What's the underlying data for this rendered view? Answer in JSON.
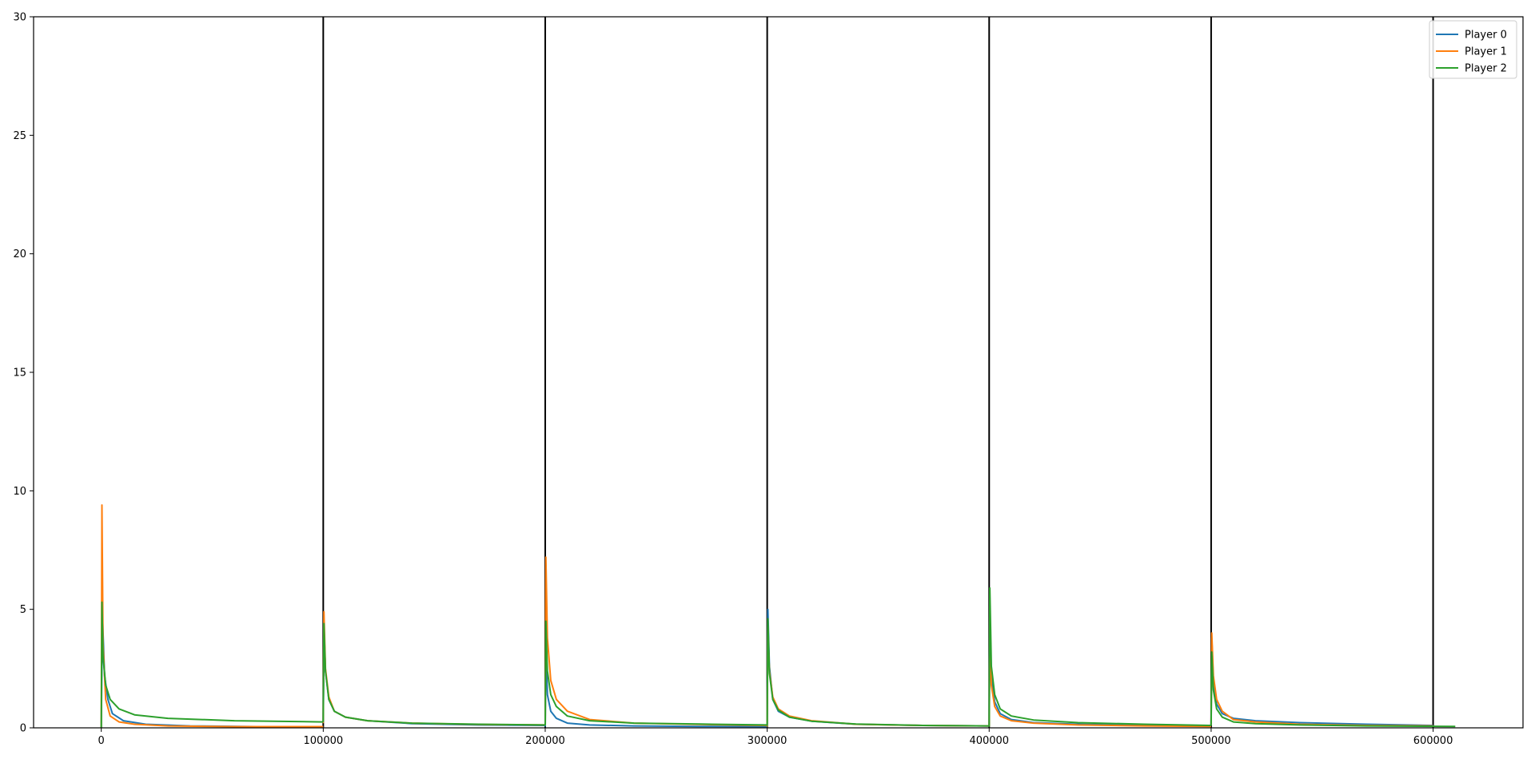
{
  "chart_data": {
    "type": "line",
    "title": "",
    "xlabel": "",
    "ylabel": "",
    "xlim": [
      -30500,
      640500
    ],
    "ylim": [
      0,
      30
    ],
    "x_ticks": [
      0,
      100000,
      200000,
      300000,
      400000,
      500000,
      600000
    ],
    "x_tick_labels": [
      "0",
      "100000",
      "200000",
      "300000",
      "400000",
      "500000",
      "600000"
    ],
    "y_ticks": [
      0,
      5,
      10,
      15,
      20,
      25,
      30
    ],
    "y_tick_labels": [
      "0",
      "5",
      "10",
      "15",
      "20",
      "25",
      "30"
    ],
    "grid": false,
    "legend_position": "top-right",
    "vertical_lines": [
      100000,
      200000,
      300000,
      400000,
      500000,
      600000
    ],
    "vertical_line_color": "#000000",
    "series": [
      {
        "name": "Player 0",
        "color": "#1f77b4",
        "segments": [
          {
            "x": [
              0,
              500,
              1500,
              3000,
              5000,
              10000,
              20000,
              40000,
              70000,
              100000
            ],
            "y": [
              0.0,
              4.8,
              2.2,
              1.2,
              0.6,
              0.3,
              0.15,
              0.08,
              0.05,
              0.05
            ]
          },
          {
            "x": [
              100000,
              100400,
              101000,
              102500,
              105000,
              110000,
              120000,
              140000,
              170000,
              200000
            ],
            "y": [
              0.2,
              4.1,
              2.4,
              1.2,
              0.7,
              0.45,
              0.3,
              0.18,
              0.12,
              0.1
            ]
          },
          {
            "x": [
              200000,
              200300,
              201000,
              202500,
              205000,
              210000,
              220000,
              240000,
              270000,
              300000
            ],
            "y": [
              0.05,
              3.6,
              1.4,
              0.7,
              0.4,
              0.2,
              0.12,
              0.08,
              0.06,
              0.05
            ]
          },
          {
            "x": [
              300000,
              300300,
              301000,
              302500,
              305000,
              310000,
              320000,
              340000,
              370000,
              400000
            ],
            "y": [
              0.05,
              5.0,
              2.6,
              1.2,
              0.7,
              0.45,
              0.28,
              0.15,
              0.1,
              0.08
            ]
          },
          {
            "x": [
              400000,
              400300,
              401000,
              402500,
              405000,
              410000,
              420000,
              440000,
              470000,
              500000
            ],
            "y": [
              0.05,
              4.0,
              2.2,
              1.1,
              0.6,
              0.35,
              0.22,
              0.15,
              0.1,
              0.08
            ]
          },
          {
            "x": [
              500000,
              500300,
              501000,
              502500,
              505000,
              510000,
              520000,
              540000,
              570000,
              600000
            ],
            "y": [
              0.1,
              3.8,
              2.0,
              1.0,
              0.6,
              0.4,
              0.3,
              0.22,
              0.15,
              0.1
            ]
          }
        ]
      },
      {
        "name": "Player 1",
        "color": "#ff7f0e",
        "segments": [
          {
            "x": [
              0,
              300,
              800,
              2000,
              4000,
              8000,
              15000,
              30000,
              60000,
              100000
            ],
            "y": [
              0.0,
              9.4,
              3.5,
              1.2,
              0.5,
              0.25,
              0.15,
              0.08,
              0.05,
              0.05
            ]
          },
          {
            "x": [
              100000,
              100300,
              101000,
              102500,
              105000,
              110000,
              120000,
              140000,
              170000,
              200000
            ],
            "y": [
              0.2,
              4.9,
              2.5,
              1.3,
              0.7,
              0.45,
              0.3,
              0.2,
              0.14,
              0.12
            ]
          },
          {
            "x": [
              200000,
              200300,
              201000,
              202500,
              205000,
              210000,
              220000,
              240000,
              270000,
              300000
            ],
            "y": [
              0.1,
              7.2,
              3.8,
              2.0,
              1.2,
              0.7,
              0.35,
              0.2,
              0.14,
              0.1
            ]
          },
          {
            "x": [
              300000,
              300300,
              301000,
              302500,
              305000,
              310000,
              320000,
              340000,
              370000,
              400000
            ],
            "y": [
              0.05,
              4.3,
              2.4,
              1.3,
              0.8,
              0.5,
              0.3,
              0.15,
              0.1,
              0.08
            ]
          },
          {
            "x": [
              400000,
              400300,
              401000,
              402500,
              405000,
              410000,
              420000,
              440000,
              470000,
              500000
            ],
            "y": [
              0.05,
              3.6,
              1.8,
              0.9,
              0.5,
              0.3,
              0.2,
              0.12,
              0.08,
              0.06
            ]
          },
          {
            "x": [
              500000,
              500300,
              501000,
              502500,
              505000,
              510000,
              520000,
              540000,
              570000,
              600000
            ],
            "y": [
              0.1,
              4.0,
              2.2,
              1.2,
              0.7,
              0.35,
              0.25,
              0.15,
              0.1,
              0.08
            ]
          }
        ]
      },
      {
        "name": "Player 2",
        "color": "#2ca02c",
        "segments": [
          {
            "x": [
              0,
              300,
              800,
              2000,
              4000,
              8000,
              15000,
              30000,
              60000,
              100000
            ],
            "y": [
              0.0,
              5.3,
              3.0,
              1.8,
              1.2,
              0.8,
              0.55,
              0.4,
              0.3,
              0.25
            ]
          },
          {
            "x": [
              100000,
              100300,
              101000,
              102500,
              105000,
              110000,
              120000,
              140000,
              170000,
              200000
            ],
            "y": [
              0.25,
              4.4,
              2.4,
              1.2,
              0.7,
              0.45,
              0.3,
              0.2,
              0.15,
              0.12
            ]
          },
          {
            "x": [
              200000,
              200300,
              201000,
              202500,
              205000,
              210000,
              220000,
              240000,
              270000,
              300000
            ],
            "y": [
              0.1,
              4.5,
              2.4,
              1.4,
              0.9,
              0.5,
              0.3,
              0.2,
              0.16,
              0.12
            ]
          },
          {
            "x": [
              300000,
              300300,
              301000,
              302500,
              305000,
              310000,
              320000,
              340000,
              370000,
              400000
            ],
            "y": [
              0.08,
              4.6,
              2.3,
              1.2,
              0.75,
              0.45,
              0.28,
              0.16,
              0.1,
              0.08
            ]
          },
          {
            "x": [
              400000,
              400300,
              401000,
              402500,
              405000,
              410000,
              420000,
              440000,
              470000,
              500000
            ],
            "y": [
              0.05,
              5.9,
              2.6,
              1.4,
              0.8,
              0.5,
              0.33,
              0.22,
              0.15,
              0.1
            ]
          },
          {
            "x": [
              500000,
              500300,
              501000,
              502500,
              505000,
              510000,
              520000,
              540000,
              570000,
              610000
            ],
            "y": [
              0.1,
              3.2,
              1.6,
              0.8,
              0.45,
              0.25,
              0.18,
              0.12,
              0.08,
              0.06
            ]
          }
        ]
      }
    ]
  }
}
